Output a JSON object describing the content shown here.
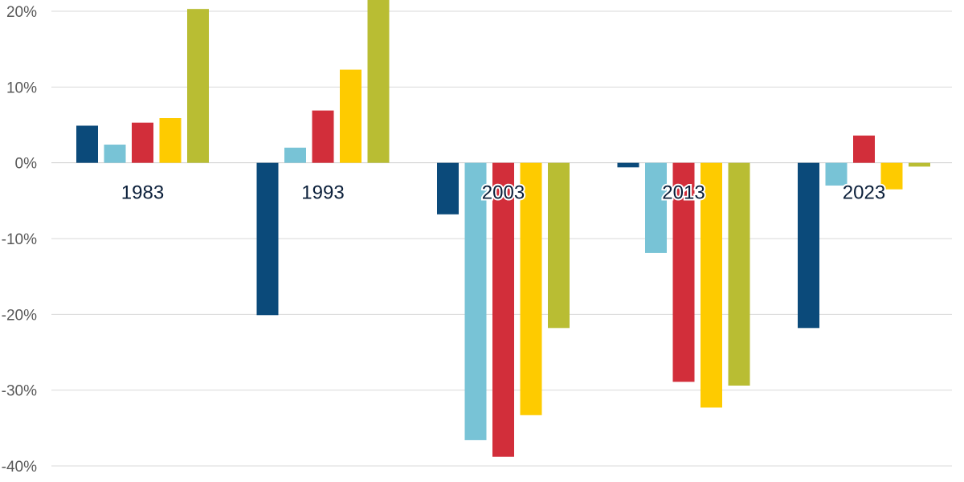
{
  "colors": {
    "background": "#ffffff",
    "gridline": "#d9d9d9",
    "tick_text": "#595959",
    "category_text": "#0b1f3a"
  },
  "chart_data": {
    "type": "bar",
    "title": "",
    "xlabel": "",
    "ylabel": "",
    "ylim": [
      -40,
      20
    ],
    "yticks": [
      20,
      10,
      0,
      -10,
      -20,
      -30,
      -40
    ],
    "ytick_labels": [
      "20%",
      "10%",
      "0%",
      "-10%",
      "-20%",
      "-30%",
      "-40%"
    ],
    "grid": true,
    "legend": "none",
    "categories": [
      "1983",
      "1993",
      "2003",
      "2013",
      "2023"
    ],
    "series": [
      {
        "color": "#0b4a7a",
        "values": [
          4.9,
          -20.1,
          -6.8,
          -0.6,
          -21.8
        ]
      },
      {
        "color": "#78c3d6",
        "values": [
          2.4,
          2.0,
          -36.6,
          -11.9,
          -3.0
        ]
      },
      {
        "color": "#d22e3a",
        "values": [
          5.3,
          6.9,
          -38.8,
          -28.9,
          3.6
        ]
      },
      {
        "color": "#fecb00",
        "values": [
          5.9,
          12.3,
          -33.3,
          -32.3,
          -3.5
        ]
      },
      {
        "color": "#b9bd33",
        "values": [
          20.3,
          22.5,
          -21.8,
          -29.4,
          -0.5
        ]
      }
    ]
  }
}
